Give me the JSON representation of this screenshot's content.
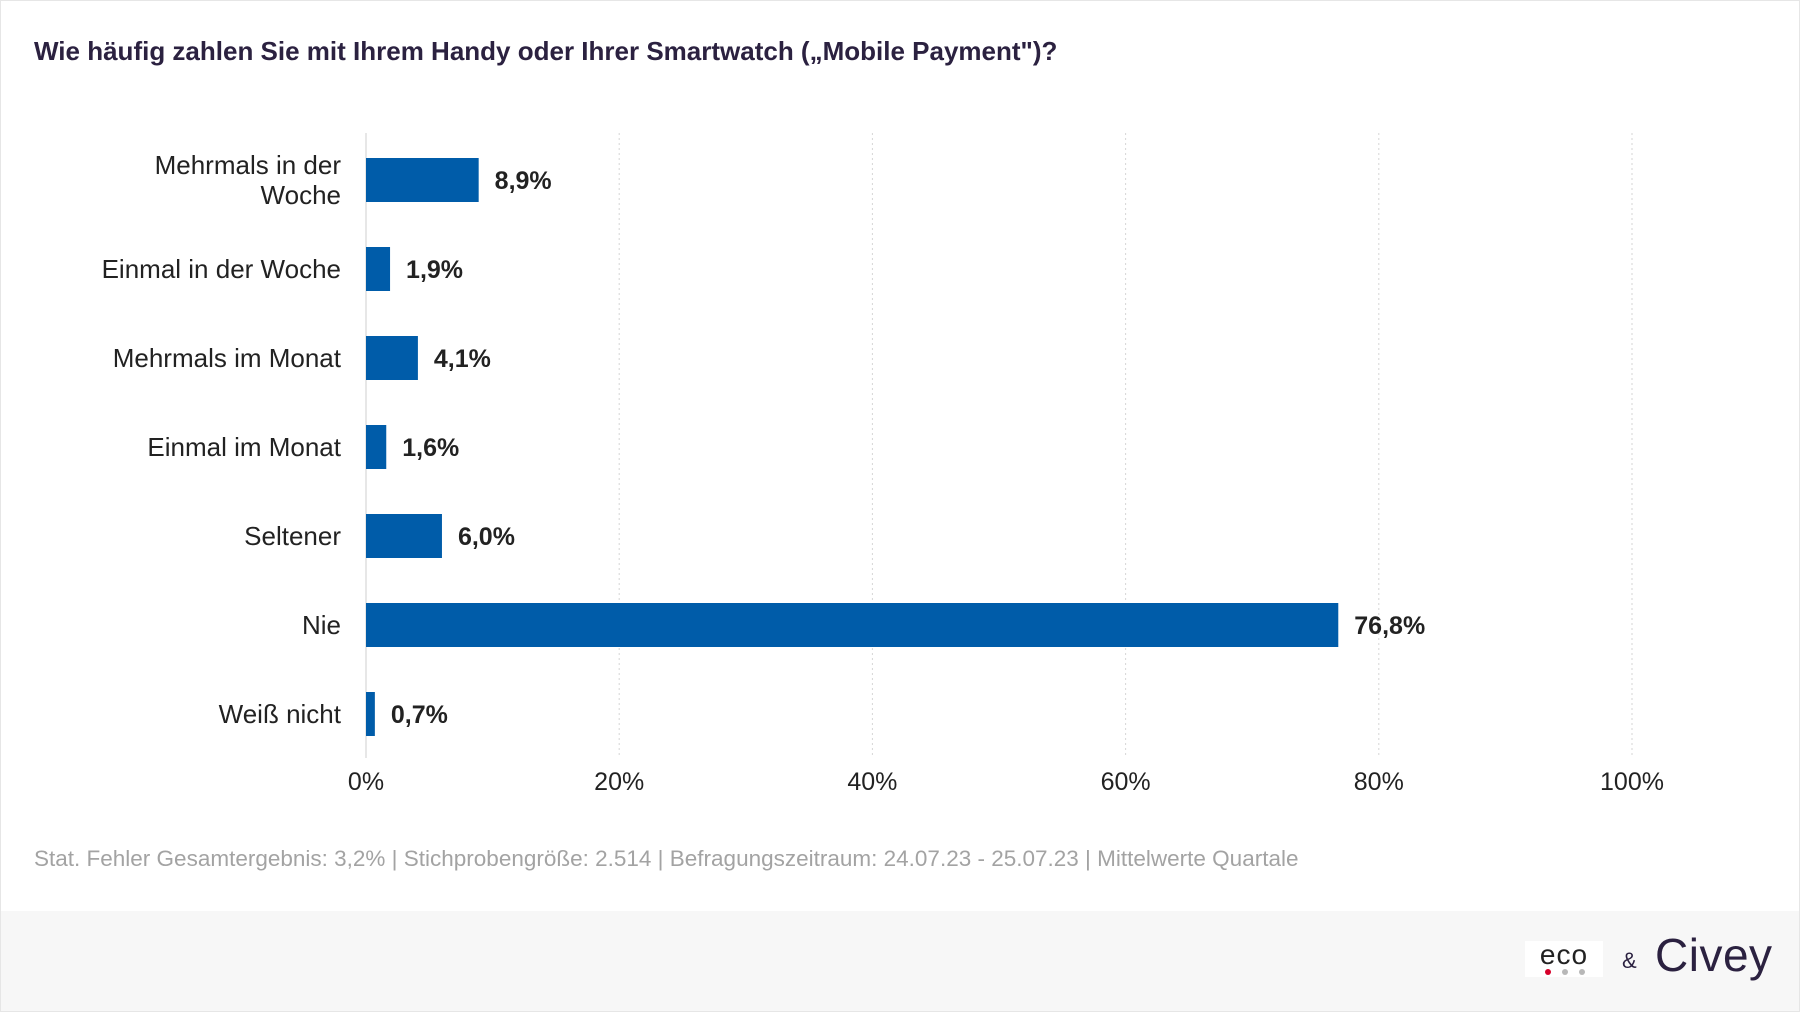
{
  "title": "Wie häufig zahlen Sie mit Ihrem Handy oder Ihrer Smartwatch („Mobile Payment\")?",
  "footnote": "Stat. Fehler Gesamtergebnis: 3,2% | Stichprobengröße: 2.514 | Befragungszeitraum: 24.07.23 - 25.07.23 | Mittelwerte Quartale",
  "logos": {
    "eco": "eco",
    "ampersand": "&",
    "civey": "Civey"
  },
  "colors": {
    "bar": "#005ca9",
    "title": "#2b2140",
    "footnote": "#a3a3a3",
    "grid": "#d6d6d6",
    "eco_dot_red": "#d6002a",
    "eco_dot_grey": "#b8b8b8"
  },
  "chart_data": {
    "type": "bar",
    "orientation": "horizontal",
    "categories": [
      [
        "Mehrmals in der",
        "Woche"
      ],
      [
        "Einmal in der Woche"
      ],
      [
        "Mehrmals im Monat"
      ],
      [
        "Einmal im Monat"
      ],
      [
        "Seltener"
      ],
      [
        "Nie"
      ],
      [
        "Weiß nicht"
      ]
    ],
    "values": [
      8.9,
      1.9,
      4.1,
      1.6,
      6.0,
      76.8,
      0.7
    ],
    "value_labels": [
      "8,9%",
      "1,9%",
      "4,1%",
      "1,6%",
      "6,0%",
      "76,8%",
      "0,7%"
    ],
    "xlim": [
      0,
      100
    ],
    "xticks": [
      0,
      20,
      40,
      60,
      80,
      100
    ],
    "xtick_labels": [
      "0%",
      "20%",
      "40%",
      "60%",
      "80%",
      "100%"
    ],
    "grid": "vertical dotted",
    "legend": "none"
  }
}
